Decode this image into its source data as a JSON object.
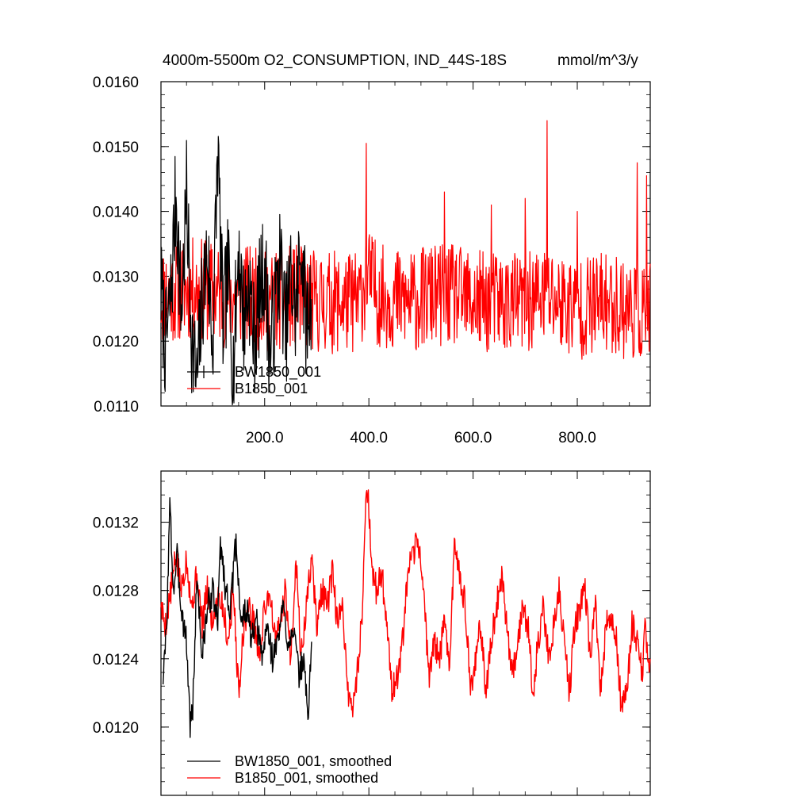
{
  "title_left": "4000m-5500m O2_CONSUMPTION, IND_44S-18S",
  "title_right": "mmol/m^3/y",
  "colors": {
    "bw": "#000000",
    "b": "#ff0000"
  },
  "chart_data": [
    {
      "type": "line",
      "title": "4000m-5500m O2_CONSUMPTION, IND_44S-18S",
      "units": "mmol/m^3/y",
      "xlim": [
        1,
        940
      ],
      "ylim": [
        0.011,
        0.016
      ],
      "xticks": [
        200,
        400,
        600,
        800
      ],
      "xtick_labels": [
        "200.0",
        "400.0",
        "600.0",
        "800.0"
      ],
      "yticks": [
        0.011,
        0.012,
        0.013,
        0.014,
        0.015,
        0.016
      ],
      "ytick_labels": [
        "0.0110",
        "0.0120",
        "0.0130",
        "0.0140",
        "0.0150",
        "0.0160"
      ],
      "legend_position": "bottom-left",
      "series": [
        {
          "name": "BW1850_001",
          "color": "#000000",
          "x_range": [
            1,
            290
          ],
          "points": [
            [
              1,
              0.0128
            ],
            [
              10,
              0.0119
            ],
            [
              20,
              0.0127
            ],
            [
              30,
              0.0143
            ],
            [
              40,
              0.0124
            ],
            [
              50,
              0.0142
            ],
            [
              60,
              0.0121
            ],
            [
              70,
              0.0113
            ],
            [
              80,
              0.0126
            ],
            [
              90,
              0.0134
            ],
            [
              100,
              0.0119
            ],
            [
              110,
              0.015
            ],
            [
              120,
              0.0122
            ],
            [
              130,
              0.0131
            ],
            [
              140,
              0.0116
            ],
            [
              150,
              0.0135
            ],
            [
              160,
              0.0123
            ],
            [
              170,
              0.0129
            ],
            [
              180,
              0.012
            ],
            [
              190,
              0.0127
            ],
            [
              200,
              0.0132
            ],
            [
              210,
              0.0118
            ],
            [
              220,
              0.0125
            ],
            [
              230,
              0.0133
            ],
            [
              240,
              0.0121
            ],
            [
              250,
              0.013
            ],
            [
              260,
              0.0124
            ],
            [
              270,
              0.0136
            ],
            [
              280,
              0.0122
            ],
            [
              290,
              0.0128
            ]
          ],
          "noise_amplitude": 0.0009,
          "seed": 7
        },
        {
          "name": "B1850_001",
          "color": "#ff0000",
          "x_range": [
            1,
            940
          ],
          "points": [
            [
              1,
              0.0127
            ],
            [
              40,
              0.0128
            ],
            [
              80,
              0.0128
            ],
            [
              120,
              0.0127
            ],
            [
              160,
              0.0127
            ],
            [
              200,
              0.0126
            ],
            [
              260,
              0.0127
            ],
            [
              300,
              0.0126
            ],
            [
              340,
              0.0126
            ],
            [
              380,
              0.0126
            ],
            [
              395,
              0.013
            ],
            [
              420,
              0.0127
            ],
            [
              480,
              0.0126
            ],
            [
              520,
              0.0127
            ],
            [
              560,
              0.0127
            ],
            [
              600,
              0.0126
            ],
            [
              640,
              0.0126
            ],
            [
              700,
              0.0126
            ],
            [
              740,
              0.0127
            ],
            [
              800,
              0.0125
            ],
            [
              860,
              0.0126
            ],
            [
              900,
              0.0125
            ],
            [
              940,
              0.0124
            ]
          ],
          "noise_amplitude": 0.0008,
          "spikes": [
            [
              395,
              0.01505
            ],
            [
              742,
              0.0154
            ],
            [
              915,
              0.01475
            ],
            [
              933,
              0.01455
            ],
            [
              545,
              0.0143
            ],
            [
              635,
              0.0141
            ],
            [
              700,
              0.0142
            ],
            [
              800,
              0.014
            ]
          ],
          "seed": 11
        }
      ]
    },
    {
      "type": "line",
      "xlim": [
        1,
        940
      ],
      "ylim": [
        0.0116,
        0.0135
      ],
      "yticks": [
        0.012,
        0.0124,
        0.0128,
        0.0132
      ],
      "ytick_labels": [
        "0.0120",
        "0.0124",
        "0.0128",
        "0.0132"
      ],
      "legend_position": "bottom-left",
      "series": [
        {
          "name": "BW1850_001, smoothed",
          "color": "#000000",
          "points": [
            [
              5,
              0.01225
            ],
            [
              12,
              0.0126
            ],
            [
              18,
              0.0133
            ],
            [
              25,
              0.0128
            ],
            [
              32,
              0.013
            ],
            [
              40,
              0.0127
            ],
            [
              45,
              0.0126
            ],
            [
              50,
              0.0125
            ],
            [
              57,
              0.01202
            ],
            [
              62,
              0.0121
            ],
            [
              70,
              0.0129
            ],
            [
              80,
              0.0124
            ],
            [
              90,
              0.0127
            ],
            [
              100,
              0.0128
            ],
            [
              110,
              0.0126
            ],
            [
              115,
              0.0131
            ],
            [
              125,
              0.0128
            ],
            [
              135,
              0.0127
            ],
            [
              145,
              0.0131
            ],
            [
              155,
              0.0126
            ],
            [
              165,
              0.0127
            ],
            [
              175,
              0.0125
            ],
            [
              185,
              0.0126
            ],
            [
              195,
              0.0124
            ],
            [
              205,
              0.0126
            ],
            [
              215,
              0.0124
            ],
            [
              225,
              0.0125
            ],
            [
              235,
              0.0127
            ],
            [
              245,
              0.0125
            ],
            [
              255,
              0.0126
            ],
            [
              265,
              0.0123
            ],
            [
              275,
              0.0124
            ],
            [
              283,
              0.01205
            ],
            [
              290,
              0.0125
            ]
          ]
        },
        {
          "name": "B1850_001, smoothed",
          "color": "#ff0000",
          "points": [
            [
              1,
              0.0127
            ],
            [
              10,
              0.0126
            ],
            [
              20,
              0.0128
            ],
            [
              30,
              0.013
            ],
            [
              40,
              0.0128
            ],
            [
              50,
              0.013
            ],
            [
              60,
              0.0127
            ],
            [
              70,
              0.0129
            ],
            [
              80,
              0.0126
            ],
            [
              90,
              0.0128
            ],
            [
              100,
              0.0126
            ],
            [
              110,
              0.0128
            ],
            [
              120,
              0.0127
            ],
            [
              130,
              0.0125
            ],
            [
              140,
              0.0128
            ],
            [
              150,
              0.0122
            ],
            [
              160,
              0.0126
            ],
            [
              170,
              0.0127
            ],
            [
              180,
              0.0126
            ],
            [
              190,
              0.0124
            ],
            [
              200,
              0.0127
            ],
            [
              210,
              0.0128
            ],
            [
              220,
              0.0125
            ],
            [
              230,
              0.0126
            ],
            [
              240,
              0.0128
            ],
            [
              250,
              0.0124
            ],
            [
              260,
              0.013
            ],
            [
              270,
              0.0124
            ],
            [
              280,
              0.0127
            ],
            [
              290,
              0.013
            ],
            [
              300,
              0.0126
            ],
            [
              310,
              0.0128
            ],
            [
              320,
              0.0127
            ],
            [
              330,
              0.0129
            ],
            [
              340,
              0.0126
            ],
            [
              350,
              0.0127
            ],
            [
              360,
              0.0122
            ],
            [
              370,
              0.0121
            ],
            [
              380,
              0.0124
            ],
            [
              388,
              0.0127
            ],
            [
              395,
              0.01345
            ],
            [
              400,
              0.0133
            ],
            [
              405,
              0.0129
            ],
            [
              415,
              0.0128
            ],
            [
              425,
              0.0129
            ],
            [
              435,
              0.0126
            ],
            [
              445,
              0.0122
            ],
            [
              455,
              0.0123
            ],
            [
              465,
              0.0125
            ],
            [
              475,
              0.0129
            ],
            [
              485,
              0.013
            ],
            [
              495,
              0.0131
            ],
            [
              505,
              0.0128
            ],
            [
              515,
              0.0123
            ],
            [
              525,
              0.0125
            ],
            [
              535,
              0.0124
            ],
            [
              545,
              0.0126
            ],
            [
              555,
              0.0124
            ],
            [
              565,
              0.0131
            ],
            [
              575,
              0.0129
            ],
            [
              585,
              0.0127
            ],
            [
              595,
              0.0122
            ],
            [
              605,
              0.0124
            ],
            [
              615,
              0.0126
            ],
            [
              625,
              0.0122
            ],
            [
              635,
              0.0125
            ],
            [
              645,
              0.0127
            ],
            [
              655,
              0.0129
            ],
            [
              665,
              0.0126
            ],
            [
              675,
              0.0123
            ],
            [
              685,
              0.0125
            ],
            [
              695,
              0.0127
            ],
            [
              705,
              0.0126
            ],
            [
              715,
              0.0122
            ],
            [
              725,
              0.0125
            ],
            [
              735,
              0.0127
            ],
            [
              745,
              0.0124
            ],
            [
              755,
              0.0126
            ],
            [
              765,
              0.0128
            ],
            [
              775,
              0.0125
            ],
            [
              785,
              0.0122
            ],
            [
              795,
              0.0126
            ],
            [
              805,
              0.0127
            ],
            [
              815,
              0.0128
            ],
            [
              825,
              0.0124
            ],
            [
              835,
              0.0127
            ],
            [
              845,
              0.0122
            ],
            [
              855,
              0.0126
            ],
            [
              865,
              0.0126
            ],
            [
              875,
              0.0125
            ],
            [
              885,
              0.0121
            ],
            [
              895,
              0.0122
            ],
            [
              905,
              0.0126
            ],
            [
              915,
              0.0125
            ],
            [
              925,
              0.0123
            ],
            [
              930,
              0.0126
            ],
            [
              935,
              0.0124
            ],
            [
              940,
              0.0124
            ]
          ]
        }
      ]
    }
  ]
}
